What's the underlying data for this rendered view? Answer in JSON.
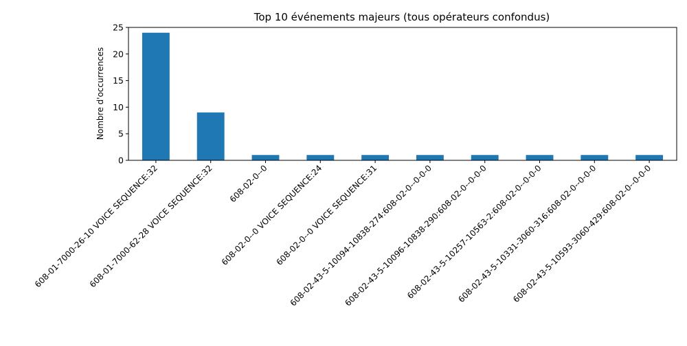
{
  "chart_data": {
    "type": "bar",
    "title": "Top 10 événements majeurs (tous opérateurs confondus)",
    "xlabel": "",
    "ylabel": "Nombre d'occurrences",
    "ylim": [
      0,
      25
    ],
    "yticks": [
      0,
      5,
      10,
      15,
      20,
      25
    ],
    "grid": false,
    "legend": "none",
    "bar_color": "#1f77b4",
    "categories": [
      "608-01-7000-26-10 VOICE SEQUENCE:32",
      "608-01-7000-62-28 VOICE SEQUENCE:32",
      "608-02-0--0",
      "608-02-0--0 VOICE SEQUENCE:24",
      "608-02-0--0 VOICE SEQUENCE:31",
      "608-02-43-5-10094-10838-274:608-02-0--0-0-0",
      "608-02-43-5-10096-10838-290:608-02-0--0-0-0",
      "608-02-43-5-10257-10563-2:608-02-0--0-0-0",
      "608-02-43-5-10331-3060-316:608-02-0--0-0-0",
      "608-02-43-5-10593-3060-429:608-02-0--0-0-0"
    ],
    "values": [
      24,
      9,
      1,
      1,
      1,
      1,
      1,
      1,
      1,
      1
    ]
  }
}
